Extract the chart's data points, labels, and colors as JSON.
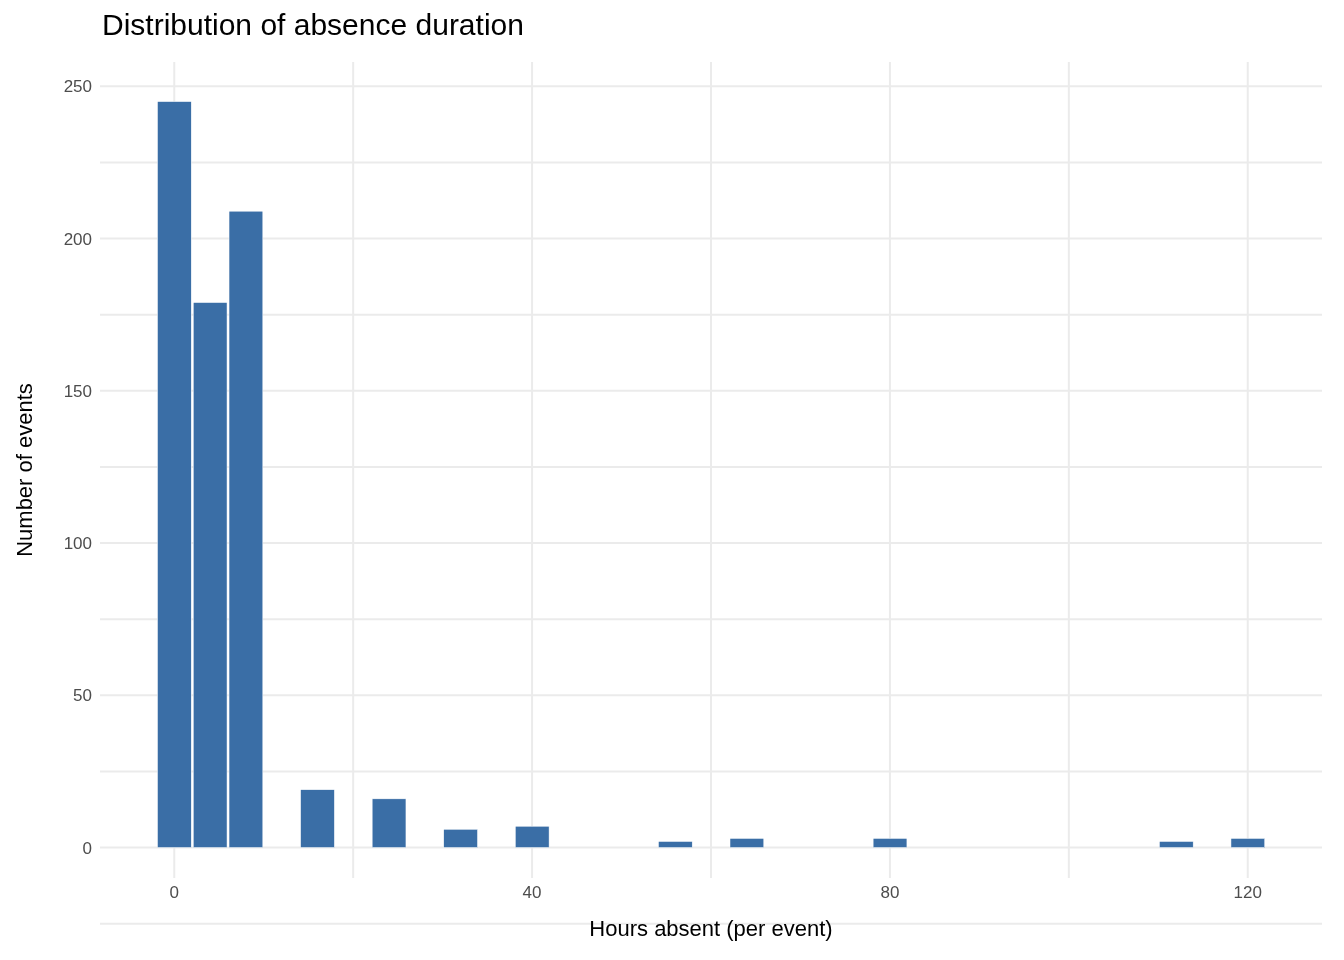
{
  "chart_data": {
    "type": "histogram",
    "title": "Distribution of absence duration",
    "xlabel": "Hours absent (per event)",
    "ylabel": "Number of events",
    "bins": [
      -2,
      2,
      6,
      10,
      14,
      18,
      22,
      26,
      30,
      34,
      38,
      42,
      46,
      50,
      54,
      58,
      62,
      66,
      70,
      74,
      78,
      82,
      86,
      90,
      94,
      98,
      102,
      106,
      110,
      114,
      118,
      122
    ],
    "values": [
      245,
      179,
      209,
      0,
      19,
      0,
      16,
      0,
      6,
      0,
      7,
      0,
      null,
      0,
      2,
      0,
      3,
      0,
      0,
      0,
      3,
      0,
      0,
      0,
      0,
      0,
      null,
      0,
      2,
      0,
      3
    ],
    "color": "#3a6ea6",
    "xlim": [
      -8.3,
      128.3
    ],
    "xticks": [
      0,
      40,
      80,
      120
    ],
    "ylim": [
      -10,
      258
    ],
    "yticks": [
      0,
      50,
      100,
      150,
      200,
      250
    ],
    "grid": true
  }
}
